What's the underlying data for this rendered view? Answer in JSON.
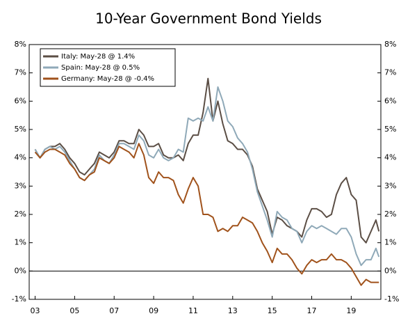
{
  "chart_data": {
    "type": "line",
    "title": "10-Year Government Bond Yields",
    "x": [
      2003.0,
      2003.25,
      2003.5,
      2003.75,
      2004.0,
      2004.25,
      2004.5,
      2004.75,
      2005.0,
      2005.25,
      2005.5,
      2005.75,
      2006.0,
      2006.25,
      2006.5,
      2006.75,
      2007.0,
      2007.25,
      2007.5,
      2007.75,
      2008.0,
      2008.25,
      2008.5,
      2008.75,
      2009.0,
      2009.25,
      2009.5,
      2009.75,
      2010.0,
      2010.25,
      2010.5,
      2010.75,
      2011.0,
      2011.25,
      2011.5,
      2011.75,
      2012.0,
      2012.25,
      2012.5,
      2012.75,
      2013.0,
      2013.25,
      2013.5,
      2013.75,
      2014.0,
      2014.25,
      2014.5,
      2014.75,
      2015.0,
      2015.25,
      2015.5,
      2015.75,
      2016.0,
      2016.25,
      2016.5,
      2016.75,
      2017.0,
      2017.25,
      2017.5,
      2017.75,
      2018.0,
      2018.25,
      2018.5,
      2018.75,
      2019.0,
      2019.25,
      2019.5,
      2019.75,
      2020.0,
      2020.25,
      2020.4
    ],
    "series": [
      {
        "name": "Italy: May-28 @ 1.4%",
        "color": "#5b4e45",
        "values": [
          4.3,
          4.0,
          4.3,
          4.4,
          4.4,
          4.5,
          4.3,
          4.0,
          3.8,
          3.5,
          3.4,
          3.6,
          3.8,
          4.2,
          4.1,
          4.0,
          4.2,
          4.6,
          4.6,
          4.5,
          4.5,
          5.0,
          4.8,
          4.4,
          4.4,
          4.5,
          4.1,
          4.0,
          4.0,
          4.1,
          3.9,
          4.5,
          4.8,
          4.8,
          5.6,
          6.8,
          5.3,
          6.0,
          5.2,
          4.6,
          4.5,
          4.3,
          4.3,
          4.1,
          3.7,
          2.9,
          2.5,
          2.1,
          1.3,
          1.9,
          1.8,
          1.6,
          1.5,
          1.4,
          1.2,
          1.8,
          2.2,
          2.2,
          2.1,
          1.9,
          2.0,
          2.7,
          3.1,
          3.3,
          2.7,
          2.5,
          1.2,
          1.0,
          1.4,
          1.8,
          1.4
        ]
      },
      {
        "name": "Spain: May-28 @ 0.5%",
        "color": "#8fa9b8",
        "values": [
          4.3,
          4.0,
          4.3,
          4.4,
          4.3,
          4.4,
          4.2,
          3.9,
          3.6,
          3.3,
          3.2,
          3.4,
          3.6,
          4.1,
          3.9,
          3.8,
          4.1,
          4.5,
          4.5,
          4.4,
          4.3,
          4.8,
          4.6,
          4.1,
          4.0,
          4.3,
          4.0,
          3.9,
          4.0,
          4.3,
          4.2,
          5.4,
          5.3,
          5.4,
          5.3,
          5.8,
          5.3,
          6.5,
          6.0,
          5.3,
          5.1,
          4.7,
          4.5,
          4.2,
          3.6,
          2.8,
          2.3,
          1.8,
          1.2,
          2.1,
          1.9,
          1.8,
          1.5,
          1.4,
          1.0,
          1.4,
          1.6,
          1.5,
          1.6,
          1.5,
          1.4,
          1.3,
          1.5,
          1.5,
          1.2,
          0.6,
          0.2,
          0.4,
          0.4,
          0.8,
          0.5
        ]
      },
      {
        "name": "Germany: May-28 @ -0.4%",
        "color": "#a0521b",
        "values": [
          4.2,
          4.0,
          4.2,
          4.3,
          4.3,
          4.2,
          4.1,
          3.8,
          3.6,
          3.3,
          3.2,
          3.4,
          3.5,
          4.0,
          3.9,
          3.8,
          4.0,
          4.4,
          4.3,
          4.2,
          4.0,
          4.5,
          4.1,
          3.3,
          3.1,
          3.5,
          3.3,
          3.3,
          3.2,
          2.7,
          2.4,
          2.9,
          3.3,
          3.0,
          2.0,
          2.0,
          1.9,
          1.4,
          1.5,
          1.4,
          1.6,
          1.6,
          1.9,
          1.8,
          1.7,
          1.4,
          1.0,
          0.7,
          0.3,
          0.8,
          0.6,
          0.6,
          0.4,
          0.1,
          -0.1,
          0.2,
          0.4,
          0.3,
          0.4,
          0.4,
          0.6,
          0.4,
          0.4,
          0.3,
          0.1,
          -0.2,
          -0.5,
          -0.3,
          -0.4,
          -0.4,
          -0.4
        ]
      }
    ],
    "xlim": [
      2002.7,
      2020.5
    ],
    "xticks": [
      {
        "value": 2003,
        "label": "03"
      },
      {
        "value": 2005,
        "label": "05"
      },
      {
        "value": 2007,
        "label": "07"
      },
      {
        "value": 2009,
        "label": "09"
      },
      {
        "value": 2011,
        "label": "11"
      },
      {
        "value": 2013,
        "label": "13"
      },
      {
        "value": 2015,
        "label": "15"
      },
      {
        "value": 2017,
        "label": "17"
      },
      {
        "value": 2019,
        "label": "19"
      }
    ],
    "ylim": [
      -1,
      8
    ],
    "yticks": [
      {
        "value": -1,
        "label": "-1%"
      },
      {
        "value": 0,
        "label": "0%"
      },
      {
        "value": 1,
        "label": "1%"
      },
      {
        "value": 2,
        "label": "2%"
      },
      {
        "value": 3,
        "label": "3%"
      },
      {
        "value": 4,
        "label": "4%"
      },
      {
        "value": 5,
        "label": "5%"
      },
      {
        "value": 6,
        "label": "6%"
      },
      {
        "value": 7,
        "label": "7%"
      },
      {
        "value": 8,
        "label": "8%"
      }
    ],
    "y2lim": [
      -1,
      8
    ],
    "y2ticks": [
      {
        "value": -1,
        "label": "-1%"
      },
      {
        "value": 0,
        "label": "0%"
      },
      {
        "value": 1,
        "label": "1%"
      },
      {
        "value": 2,
        "label": "2%"
      },
      {
        "value": 3,
        "label": "3%"
      },
      {
        "value": 4,
        "label": "4%"
      },
      {
        "value": 5,
        "label": "5%"
      },
      {
        "value": 6,
        "label": "6%"
      },
      {
        "value": 7,
        "label": "7%"
      },
      {
        "value": 8,
        "label": "8%"
      }
    ],
    "legend": "upper left"
  }
}
